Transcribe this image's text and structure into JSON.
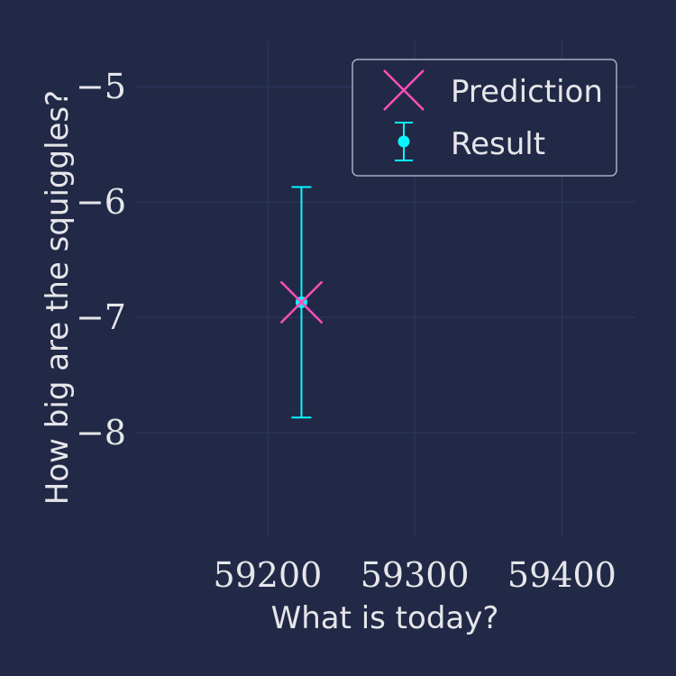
{
  "chart_data": {
    "type": "scatter",
    "xlabel": "What is today?",
    "ylabel": "How big are the squiggles?",
    "xlim": [
      59110,
      59450
    ],
    "ylim": [
      -8.9,
      -4.6
    ],
    "xticks": [
      59200,
      59300,
      59400
    ],
    "xtick_labels": [
      "59200",
      "59300",
      "59400"
    ],
    "yticks": [
      -8,
      -7,
      -6,
      -5
    ],
    "ytick_labels": [
      "−8",
      "−7",
      "−6",
      "−5"
    ],
    "grid": true,
    "legend_position": "top-right",
    "series": [
      {
        "name": "Prediction",
        "marker": "x",
        "color": "#ff4fb8",
        "points": [
          {
            "x": 59223,
            "y": -6.87
          }
        ]
      },
      {
        "name": "Result",
        "marker": "errorbar",
        "color": "#08f7fe",
        "points": [
          {
            "x": 59223,
            "y": -6.87,
            "yerr_low": 1.0,
            "yerr_high": 1.0
          }
        ]
      }
    ]
  },
  "colors": {
    "background": "#212946",
    "grid": "#2a3459",
    "text": "#e6e6ea",
    "legend_border": "#a8adc0"
  }
}
